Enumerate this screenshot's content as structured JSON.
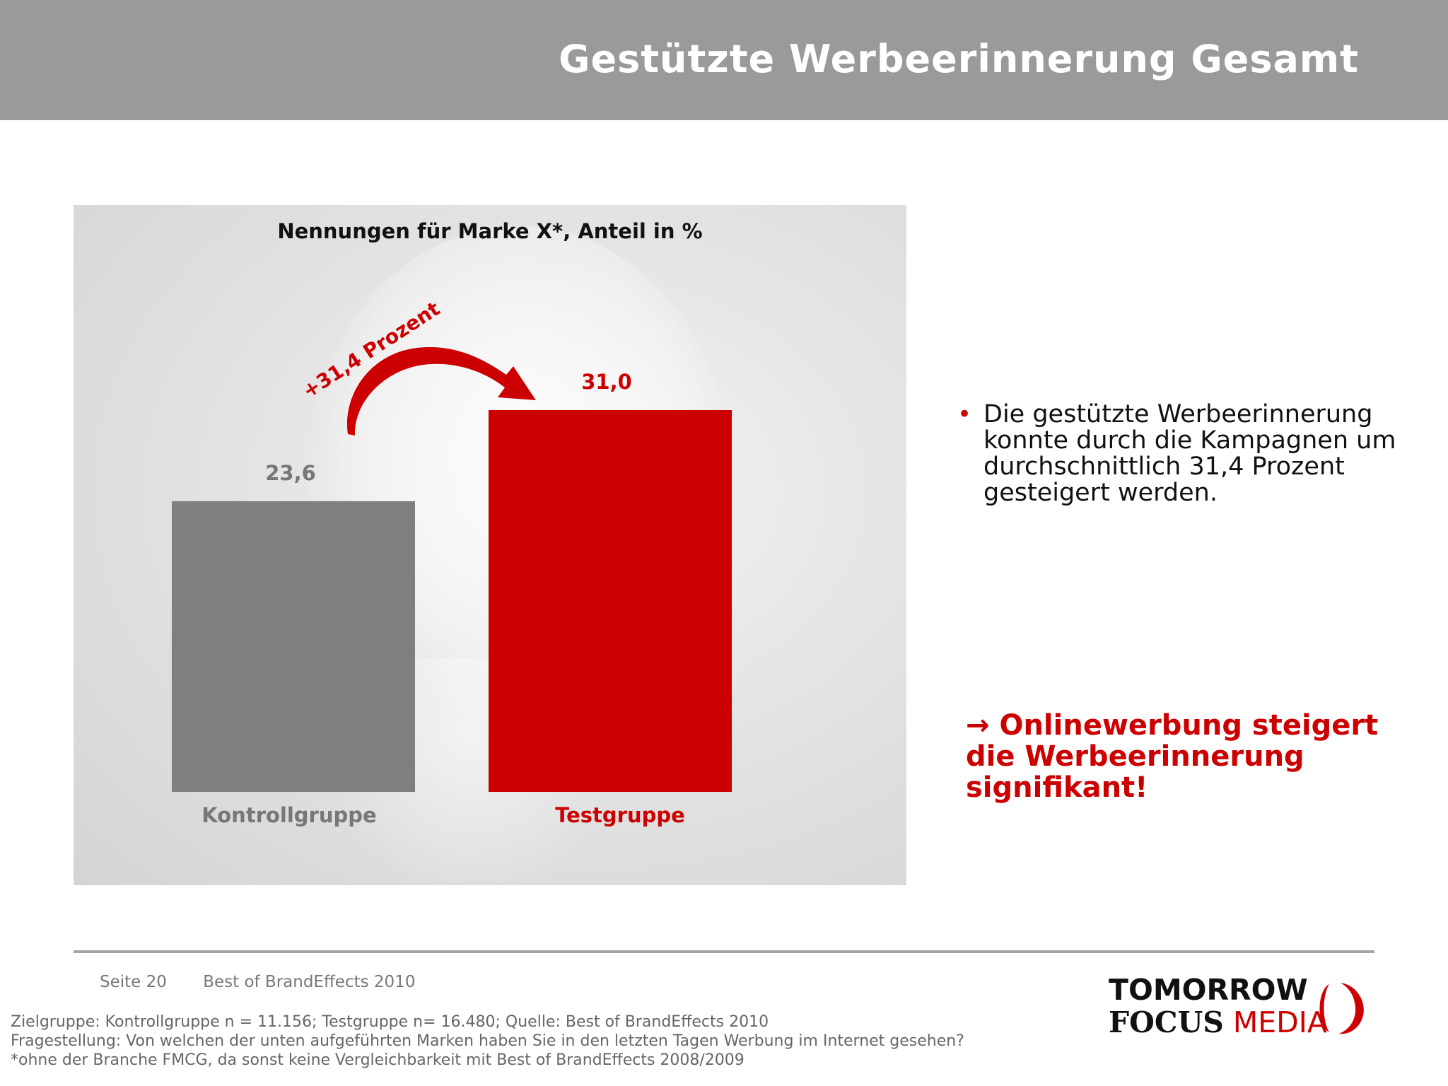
{
  "header": {
    "title": "Gestützte Werbeerinnerung Gesamt"
  },
  "chart_data": {
    "type": "bar",
    "title": "Nennungen für Marke X*, Anteil in %",
    "categories": [
      "Kontrollgruppe",
      "Testgruppe"
    ],
    "values": [
      23.6,
      31.0
    ],
    "value_labels": [
      "23,6",
      "31,0"
    ],
    "colors": [
      "#807f80",
      "#cc0000"
    ],
    "category_label_colors": [
      "#777777",
      "#cc0000"
    ],
    "ylim": [
      0,
      31.0
    ],
    "annotation": {
      "text": "+31,4 Prozent",
      "color": "#cc0000"
    },
    "grid": false
  },
  "bullets": [
    {
      "text": "Die gestützte Werbeerinnerung konnte durch die Kampagnen um durchschnittlich 31,4 Prozent gesteigert werden."
    }
  ],
  "conclusion": {
    "lines": [
      "→ Onlinewerbung steigert",
      "die Werbeerinnerung",
      "signifikant!"
    ]
  },
  "footer": {
    "page": "Seite 20",
    "source_title": "Best of BrandEffects 2010",
    "notes": [
      "Zielgruppe: Kontrollgruppe n = 11.156; Testgruppe n= 16.480; Quelle: Best of BrandEffects 2010",
      "Fragestellung: Von welchen der unten aufgeführten Marken haben Sie in den letzten Tagen Werbung im Internet gesehen?",
      "*ohne der Branche FMCG, da sonst keine Vergleichbarkeit mit Best of BrandEffects 2008/2009"
    ]
  },
  "logo": {
    "line1": "TOMORROW",
    "focus": "FOCUS",
    "media": "MEDIA",
    "accent": "#cc0000"
  }
}
